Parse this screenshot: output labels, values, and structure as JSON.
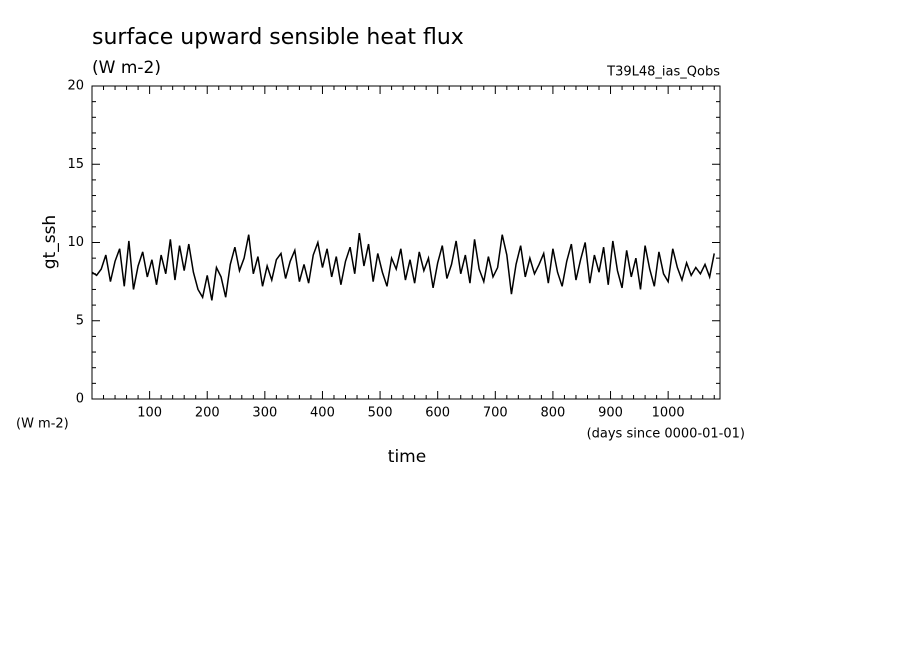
{
  "chart_data": {
    "type": "line",
    "title": "surface upward sensible heat flux",
    "subtitle": "(W m-2)",
    "annotation": "T39L48_ias_Qobs",
    "ylabel": "gt_ssh",
    "yunits": "(W m-2)",
    "xunits": "(days since 0000-01-01)",
    "xlabel": "time",
    "color": "#000000",
    "xlim": [
      0,
      1090
    ],
    "ylim": [
      0,
      20
    ],
    "xticks": [
      100,
      200,
      300,
      400,
      500,
      600,
      700,
      800,
      900,
      1000
    ],
    "yticks": [
      0,
      5,
      10,
      15,
      20
    ],
    "xminorticks": [
      20,
      40,
      60,
      80,
      120,
      140,
      160,
      180,
      220,
      240,
      260,
      280,
      320,
      340,
      360,
      380,
      420,
      440,
      460,
      480,
      520,
      540,
      560,
      580,
      620,
      640,
      660,
      680,
      720,
      740,
      760,
      780,
      820,
      840,
      860,
      880,
      920,
      940,
      960,
      980,
      1020,
      1040,
      1060,
      1080
    ],
    "yminorticks": [
      1,
      2,
      3,
      4,
      6,
      7,
      8,
      9,
      11,
      12,
      13,
      14,
      16,
      17,
      18,
      19
    ],
    "x": [
      0,
      8,
      16,
      24,
      32,
      40,
      48,
      56,
      64,
      72,
      80,
      88,
      96,
      104,
      112,
      120,
      128,
      136,
      144,
      152,
      160,
      168,
      176,
      184,
      192,
      200,
      208,
      216,
      224,
      232,
      240,
      248,
      256,
      264,
      272,
      280,
      288,
      296,
      304,
      312,
      320,
      328,
      336,
      344,
      352,
      360,
      368,
      376,
      384,
      392,
      400,
      408,
      416,
      424,
      432,
      440,
      448,
      456,
      464,
      472,
      480,
      488,
      496,
      504,
      512,
      520,
      528,
      536,
      544,
      552,
      560,
      568,
      576,
      584,
      592,
      600,
      608,
      616,
      624,
      632,
      640,
      648,
      656,
      664,
      672,
      680,
      688,
      696,
      704,
      712,
      720,
      728,
      736,
      744,
      752,
      760,
      768,
      776,
      784,
      792,
      800,
      808,
      816,
      824,
      832,
      840,
      848,
      856,
      864,
      872,
      880,
      888,
      896,
      904,
      912,
      920,
      928,
      936,
      944,
      952,
      960,
      968,
      976,
      984,
      992,
      1000,
      1008,
      1016,
      1024,
      1032,
      1040,
      1048,
      1056,
      1064,
      1072,
      1080
    ],
    "values": [
      8.1,
      7.9,
      8.3,
      9.2,
      7.5,
      8.8,
      9.6,
      7.2,
      10.1,
      7.0,
      8.5,
      9.4,
      7.8,
      8.9,
      7.3,
      9.2,
      8.0,
      10.2,
      7.6,
      9.8,
      8.2,
      9.9,
      8.1,
      7.0,
      6.5,
      7.9,
      6.3,
      8.4,
      7.8,
      6.5,
      8.6,
      9.7,
      8.2,
      9.0,
      10.5,
      8.0,
      9.1,
      7.2,
      8.5,
      7.6,
      8.9,
      9.3,
      7.7,
      8.8,
      9.5,
      7.5,
      8.6,
      7.4,
      9.2,
      10.0,
      8.4,
      9.6,
      7.8,
      9.1,
      7.3,
      8.8,
      9.7,
      8.0,
      10.6,
      8.5,
      9.9,
      7.5,
      9.3,
      8.1,
      7.2,
      9.0,
      8.3,
      9.6,
      7.6,
      8.9,
      7.4,
      9.4,
      8.2,
      9.0,
      7.1,
      8.7,
      9.8,
      7.7,
      8.6,
      10.1,
      8.0,
      9.2,
      7.4,
      10.2,
      8.3,
      7.5,
      9.1,
      7.8,
      8.4,
      10.5,
      9.2,
      6.7,
      8.6,
      9.8,
      7.8,
      9.0,
      8.0,
      8.6,
      9.3,
      7.4,
      9.6,
      8.1,
      7.2,
      8.8,
      9.9,
      7.6,
      8.9,
      10.0,
      7.4,
      9.2,
      8.1,
      9.7,
      7.3,
      10.1,
      8.2,
      7.1,
      9.5,
      7.8,
      9.0,
      7.0,
      9.8,
      8.3,
      7.2,
      9.4,
      8.0,
      7.5,
      9.6,
      8.4,
      7.6,
      8.7,
      7.9,
      8.4,
      8.0,
      8.6,
      7.8,
      9.3
    ]
  }
}
